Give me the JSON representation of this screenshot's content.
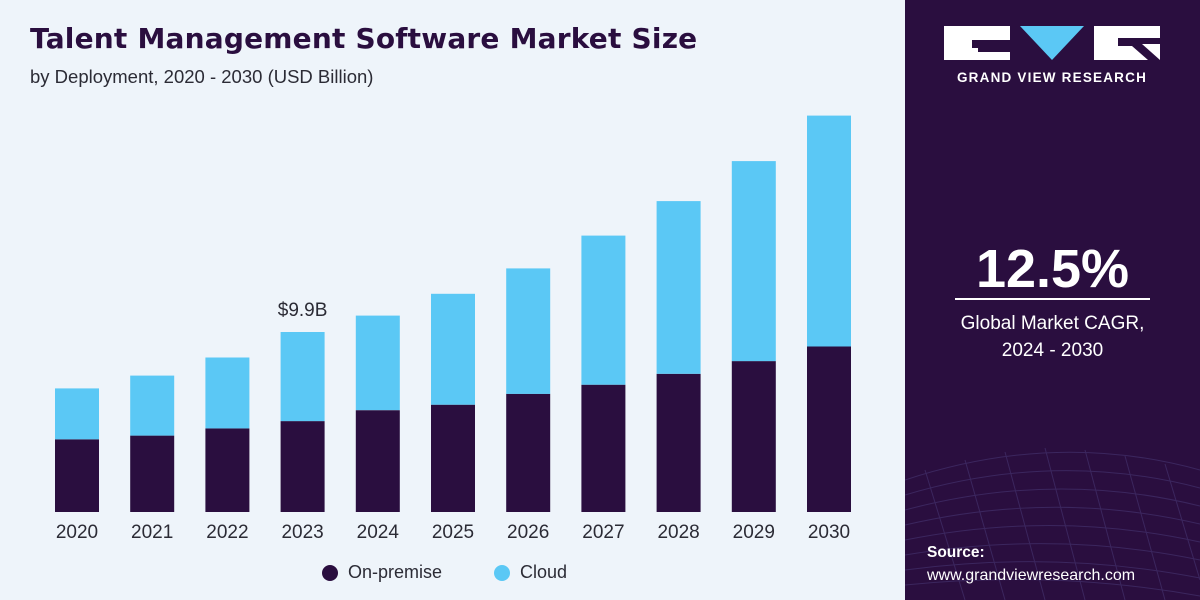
{
  "title": "Talent Management Software Market Size",
  "subtitle": "by Deployment, 2020 - 2030 (USD Billion)",
  "colors": {
    "on_premise": "#2a0e3f",
    "cloud": "#5bc8f5",
    "panel_background": "#2a0e3f"
  },
  "chart_data": {
    "type": "bar",
    "stacked": true,
    "categories": [
      "2020",
      "2021",
      "2022",
      "2023",
      "2024",
      "2025",
      "2026",
      "2027",
      "2028",
      "2029",
      "2030"
    ],
    "series": [
      {
        "name": "On-premise",
        "values": [
          4.0,
          4.2,
          4.6,
          5.0,
          5.6,
          5.9,
          6.5,
          7.0,
          7.6,
          8.3,
          9.1
        ]
      },
      {
        "name": "Cloud",
        "values": [
          2.8,
          3.3,
          3.9,
          4.9,
          5.2,
          6.1,
          6.9,
          8.2,
          9.5,
          11.0,
          12.7
        ]
      }
    ],
    "annotations": [
      {
        "category": "2023",
        "label": "$9.9B"
      }
    ],
    "ylim": [
      0,
      22
    ],
    "grid": false,
    "legend_position": "bottom-center"
  },
  "legend": [
    {
      "label": "On-premise",
      "color": "#2a0e3f"
    },
    {
      "label": "Cloud",
      "color": "#5bc8f5"
    }
  ],
  "brand": {
    "name": "GRAND VIEW RESEARCH",
    "logo_icon": "gvr-logo-icon"
  },
  "cagr": {
    "value": "12.5%",
    "label_line1": "Global Market CAGR,",
    "label_line2": "2024 - 2030"
  },
  "source": {
    "label": "Source:",
    "url": "www.grandviewresearch.com"
  }
}
